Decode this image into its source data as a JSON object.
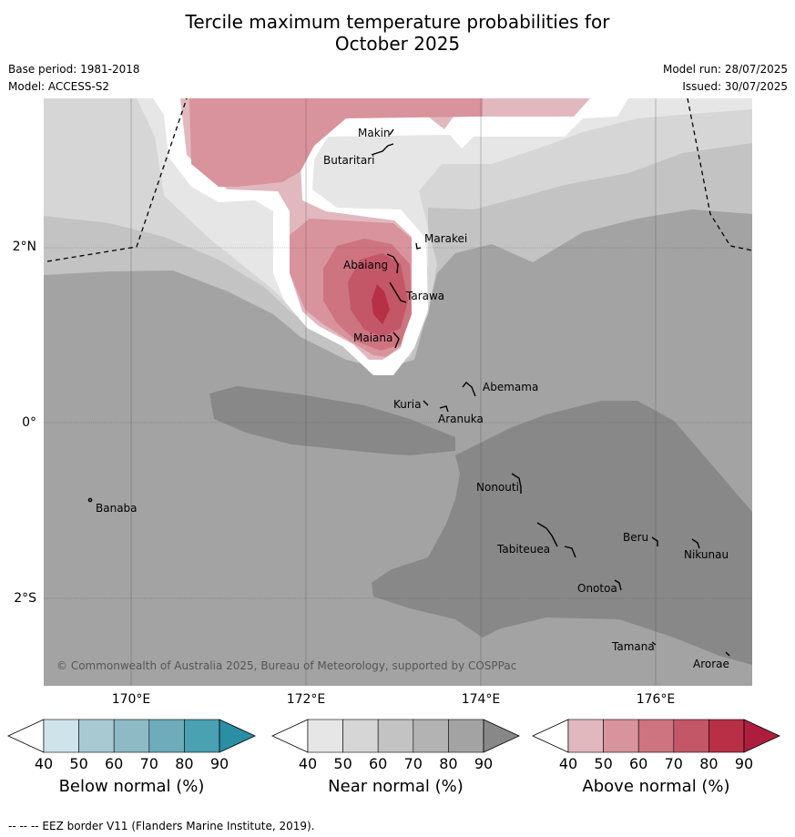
{
  "title_line1": "Tercile maximum temperature probabilities for",
  "title_line2": "October 2025",
  "base_period": "Base period: 1981-2018",
  "model": "Model: ACCESS-S2",
  "model_run": "Model run: 28/07/2025",
  "issued": "Issued: 30/07/2025",
  "copyright": "© Commonwealth of Australia 2025, Bureau of Meteorology, supported by COSPPac",
  "lat_labels": [
    "2°N",
    "0°",
    "2°S"
  ],
  "lon_labels": [
    "170°E",
    "172°E",
    "174°E",
    "176°E"
  ],
  "islands": [
    "Makin",
    "Butaritari",
    "Marakei",
    "Abaiang",
    "Tarawa",
    "Maiana",
    "Abemama",
    "Kuria",
    "Aranuka",
    "Banaba",
    "Nonouti",
    "Beru",
    "Tabiteuea",
    "Nikunau",
    "Onotoa",
    "Tamana",
    "Arorae"
  ],
  "colorbars": [
    {
      "title": "Below normal (%)",
      "ticks": [
        "40",
        "50",
        "60",
        "70",
        "80",
        "90"
      ],
      "colors": [
        "#ffffff",
        "#cfe3ea",
        "#a9c9d2",
        "#8ebac6",
        "#6eacbc",
        "#4aa1b2",
        "#2b8ea3"
      ]
    },
    {
      "title": "Near normal (%)",
      "ticks": [
        "40",
        "50",
        "60",
        "70",
        "80",
        "90"
      ],
      "colors": [
        "#ffffff",
        "#e6e6e6",
        "#d6d6d6",
        "#c3c3c3",
        "#b3b3b3",
        "#a3a3a3",
        "#888888"
      ]
    },
    {
      "title": "Above normal (%)",
      "ticks": [
        "40",
        "50",
        "60",
        "70",
        "80",
        "90"
      ],
      "colors": [
        "#ffffff",
        "#e2b8bf",
        "#d8939c",
        "#cd7480",
        "#c35767",
        "#b73046",
        "#ad1e3e"
      ]
    }
  ],
  "footer": "--  --  -- EEZ border V11 (Flanders Marine Institute, 2019)."
}
